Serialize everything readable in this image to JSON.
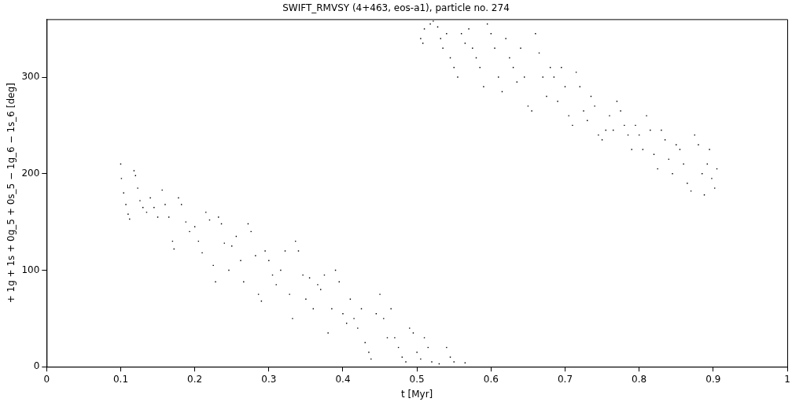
{
  "chart_data": {
    "type": "scatter",
    "title": "SWIFT_RMVSY (4+463, eos-a1), particle no. 274",
    "xlabel": "t [Myr]",
    "ylabel": "+ 1g + 1s + 0g_5 + 0s_5 − 1g_6 − 1s_6 [deg]",
    "xlim": [
      0,
      1
    ],
    "ylim": [
      0,
      360
    ],
    "xticks": [
      0,
      0.1,
      0.2,
      0.3,
      0.4,
      0.5,
      0.6,
      0.7,
      0.8,
      0.9,
      1
    ],
    "yticks": [
      0,
      100,
      200,
      300
    ],
    "grid": false,
    "legend": false,
    "marker": "square",
    "series": [
      {
        "color": "#000000",
        "x": [
          0.1,
          0.101,
          0.104,
          0.107,
          0.11,
          0.112,
          0.118,
          0.12,
          0.123,
          0.126,
          0.13,
          0.135,
          0.14,
          0.145,
          0.15,
          0.156,
          0.16,
          0.165,
          0.17,
          0.172,
          0.178,
          0.182,
          0.188,
          0.193,
          0.2,
          0.205,
          0.21,
          0.215,
          0.22,
          0.225,
          0.228,
          0.232,
          0.236,
          0.24,
          0.246,
          0.25,
          0.256,
          0.262,
          0.266,
          0.272,
          0.276,
          0.282,
          0.286,
          0.29,
          0.295,
          0.3,
          0.305,
          0.31,
          0.316,
          0.322,
          0.328,
          0.332,
          0.336,
          0.34,
          0.346,
          0.35,
          0.355,
          0.36,
          0.366,
          0.37,
          0.375,
          0.38,
          0.385,
          0.39,
          0.395,
          0.4,
          0.405,
          0.41,
          0.415,
          0.42,
          0.425,
          0.43,
          0.435,
          0.438,
          0.445,
          0.45,
          0.455,
          0.46,
          0.465,
          0.47,
          0.475,
          0.48,
          0.485,
          0.49,
          0.495,
          0.5,
          0.505,
          0.51,
          0.515,
          0.52,
          0.53,
          0.54,
          0.545,
          0.55,
          0.565,
          0.505,
          0.508,
          0.51,
          0.518,
          0.522,
          0.528,
          0.532,
          0.535,
          0.54,
          0.545,
          0.55,
          0.555,
          0.56,
          0.565,
          0.57,
          0.575,
          0.58,
          0.585,
          0.59,
          0.595,
          0.6,
          0.605,
          0.61,
          0.615,
          0.62,
          0.625,
          0.63,
          0.635,
          0.64,
          0.645,
          0.65,
          0.655,
          0.66,
          0.665,
          0.67,
          0.675,
          0.68,
          0.685,
          0.69,
          0.695,
          0.7,
          0.705,
          0.71,
          0.715,
          0.72,
          0.725,
          0.73,
          0.735,
          0.74,
          0.745,
          0.75,
          0.755,
          0.76,
          0.765,
          0.77,
          0.775,
          0.78,
          0.785,
          0.79,
          0.795,
          0.8,
          0.805,
          0.81,
          0.815,
          0.82,
          0.825,
          0.83,
          0.835,
          0.84,
          0.845,
          0.85,
          0.855,
          0.86,
          0.865,
          0.87,
          0.875,
          0.88,
          0.885,
          0.888,
          0.892,
          0.895,
          0.898,
          0.902,
          0.905
        ],
        "values": [
          210,
          195,
          180,
          168,
          158,
          153,
          203,
          198,
          185,
          172,
          165,
          160,
          175,
          165,
          155,
          183,
          168,
          155,
          130,
          122,
          175,
          168,
          150,
          140,
          145,
          130,
          118,
          160,
          152,
          105,
          88,
          155,
          148,
          128,
          100,
          125,
          135,
          110,
          88,
          148,
          140,
          115,
          75,
          68,
          120,
          110,
          95,
          85,
          100,
          120,
          75,
          50,
          130,
          120,
          95,
          70,
          92,
          60,
          85,
          80,
          95,
          35,
          60,
          100,
          88,
          55,
          45,
          70,
          50,
          40,
          60,
          25,
          15,
          8,
          55,
          75,
          50,
          30,
          60,
          30,
          20,
          10,
          5,
          40,
          35,
          15,
          8,
          30,
          20,
          5,
          3,
          20,
          10,
          5,
          4,
          340,
          335,
          350,
          355,
          358,
          352,
          340,
          330,
          345,
          320,
          310,
          300,
          345,
          335,
          350,
          330,
          320,
          310,
          290,
          355,
          345,
          330,
          300,
          285,
          340,
          320,
          310,
          295,
          330,
          300,
          270,
          265,
          345,
          325,
          300,
          280,
          310,
          300,
          275,
          310,
          290,
          260,
          250,
          305,
          290,
          265,
          255,
          280,
          270,
          240,
          235,
          245,
          260,
          245,
          275,
          265,
          250,
          240,
          225,
          250,
          240,
          225,
          260,
          245,
          220,
          205,
          245,
          235,
          215,
          200,
          230,
          225,
          210,
          190,
          182,
          240,
          230,
          200,
          178,
          210,
          225,
          195,
          185,
          205
        ]
      }
    ]
  }
}
